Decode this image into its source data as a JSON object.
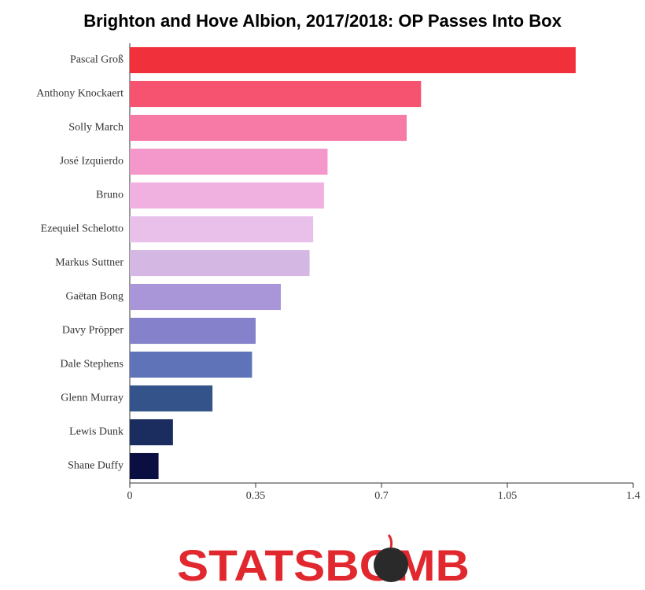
{
  "chart_data": {
    "type": "barh",
    "title": "Brighton and Hove Albion, 2017/2018: OP Passes Into Box",
    "categories": [
      "Pascal Groß",
      "Anthony Knockaert",
      "Solly March",
      "José Izquierdo",
      "Bruno",
      "Ezequiel Schelotto",
      "Markus Suttner",
      "Gaëtan Bong",
      "Davy Pröpper",
      "Dale Stephens",
      "Glenn Murray",
      "Lewis Dunk",
      "Shane Duffy"
    ],
    "values": [
      1.24,
      0.81,
      0.77,
      0.55,
      0.54,
      0.51,
      0.5,
      0.42,
      0.35,
      0.34,
      0.23,
      0.12,
      0.08
    ],
    "colors": [
      "#f0313b",
      "#f5536f",
      "#f779a6",
      "#f497cb",
      "#f0b0e0",
      "#e8c0ea",
      "#d5b7e4",
      "#a996d8",
      "#8581cb",
      "#5f73b8",
      "#34538a",
      "#1a2d5e",
      "#0b0e40"
    ],
    "xlim": [
      0,
      1.4
    ],
    "xticks": [
      0,
      0.35,
      0.7,
      1.05,
      1.4
    ],
    "grid": false,
    "logo": "STATSBOMB"
  }
}
